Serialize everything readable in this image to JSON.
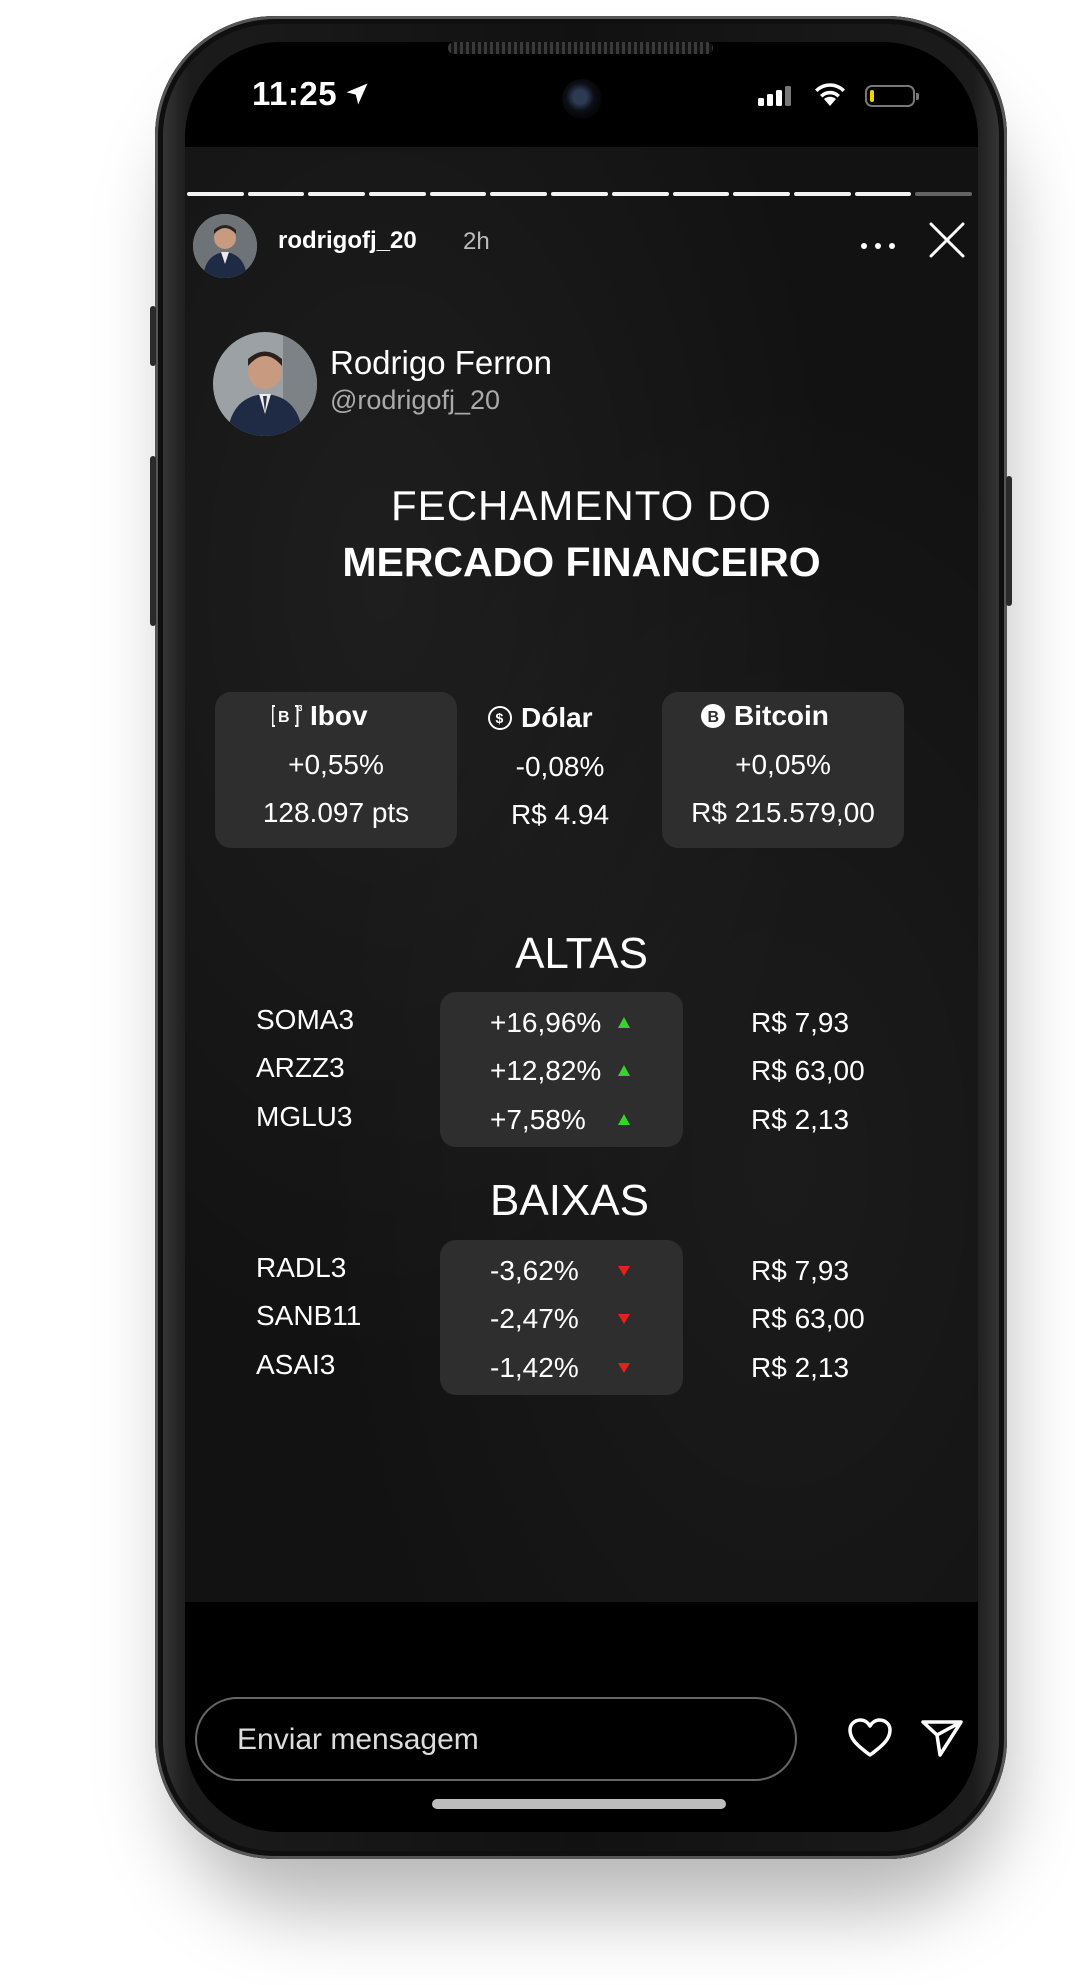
{
  "status_bar": {
    "time": "11:25"
  },
  "story_header": {
    "username": "rodrigofj_20",
    "age": "2h",
    "segments_total": 13,
    "segments_done": 12
  },
  "profile": {
    "name": "Rodrigo Ferron",
    "handle": "@rodrigofj_20"
  },
  "title": {
    "line1": "FECHAMENTO DO",
    "line2": "MERCADO FINANCEIRO"
  },
  "indices": [
    {
      "icon": "b3-icon",
      "name": "Ibov",
      "change": "+0,55%",
      "value": "128.097 pts"
    },
    {
      "icon": "dollar-icon",
      "name": "Dólar",
      "change": "-0,08%",
      "value": "R$ 4.94"
    },
    {
      "icon": "bitcoin-icon",
      "name": "Bitcoin",
      "change": "+0,05%",
      "value": "R$ 215.579,00"
    }
  ],
  "altas": {
    "label": "ALTAS",
    "rows": [
      {
        "ticker": "SOMA3",
        "change": "+16,96%",
        "price": "R$ 7,93"
      },
      {
        "ticker": "ARZZ3",
        "change": "+12,82%",
        "price": "R$ 63,00"
      },
      {
        "ticker": "MGLU3",
        "change": "+7,58%",
        "price": "R$ 2,13"
      }
    ]
  },
  "baixas": {
    "label": "BAIXAS",
    "rows": [
      {
        "ticker": "RADL3",
        "change": "-3,62%",
        "price": "R$ 7,93"
      },
      {
        "ticker": "SANB11",
        "change": "-2,47%",
        "price": "R$ 63,00"
      },
      {
        "ticker": "ASAI3",
        "change": "-1,42%",
        "price": "R$ 2,13"
      }
    ]
  },
  "reply": {
    "placeholder": "Enviar mensagem"
  },
  "colors": {
    "up": "#39d22b",
    "down": "#e0241b",
    "card": "#2e2e2e"
  }
}
